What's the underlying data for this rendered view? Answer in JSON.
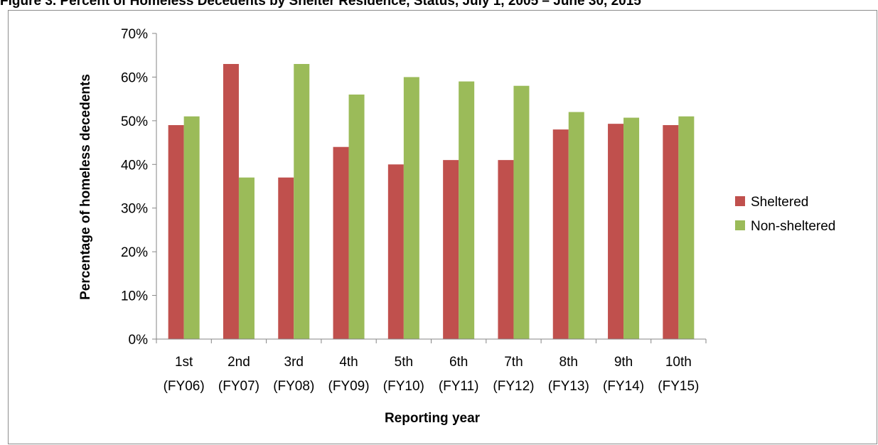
{
  "figure_title": "Figure 3. Percent of Homeless Decedents by Shelter Residence, Status, July 1, 2005 – June 30, 2015",
  "chart_data": {
    "type": "bar",
    "title": "",
    "categories": [
      [
        "1st",
        "(FY06)"
      ],
      [
        "2nd",
        "(FY07)"
      ],
      [
        "3rd",
        "(FY08)"
      ],
      [
        "4th",
        "(FY09)"
      ],
      [
        "5th",
        "(FY10)"
      ],
      [
        "6th",
        "(FY11)"
      ],
      [
        "7th",
        "(FY12)"
      ],
      [
        "8th",
        "(FY13)"
      ],
      [
        "9th",
        "(FY14)"
      ],
      [
        "10th",
        "(FY15)"
      ]
    ],
    "series": [
      {
        "name": "Sheltered",
        "color": "#c0504d",
        "values": [
          49,
          63,
          37,
          44,
          40,
          41,
          41,
          48,
          49.3,
          49
        ]
      },
      {
        "name": "Non-sheltered",
        "color": "#9bbb59",
        "values": [
          51,
          37,
          63,
          56,
          60,
          59,
          58,
          52,
          50.7,
          51
        ]
      }
    ],
    "xlabel": "Reporting year",
    "ylabel": "Percentage of homeless decedents",
    "ylim": [
      0,
      70
    ],
    "yticks": [
      0,
      10,
      20,
      30,
      40,
      50,
      60,
      70
    ],
    "ytick_suffix": "%",
    "grid": false,
    "legend": "right"
  }
}
